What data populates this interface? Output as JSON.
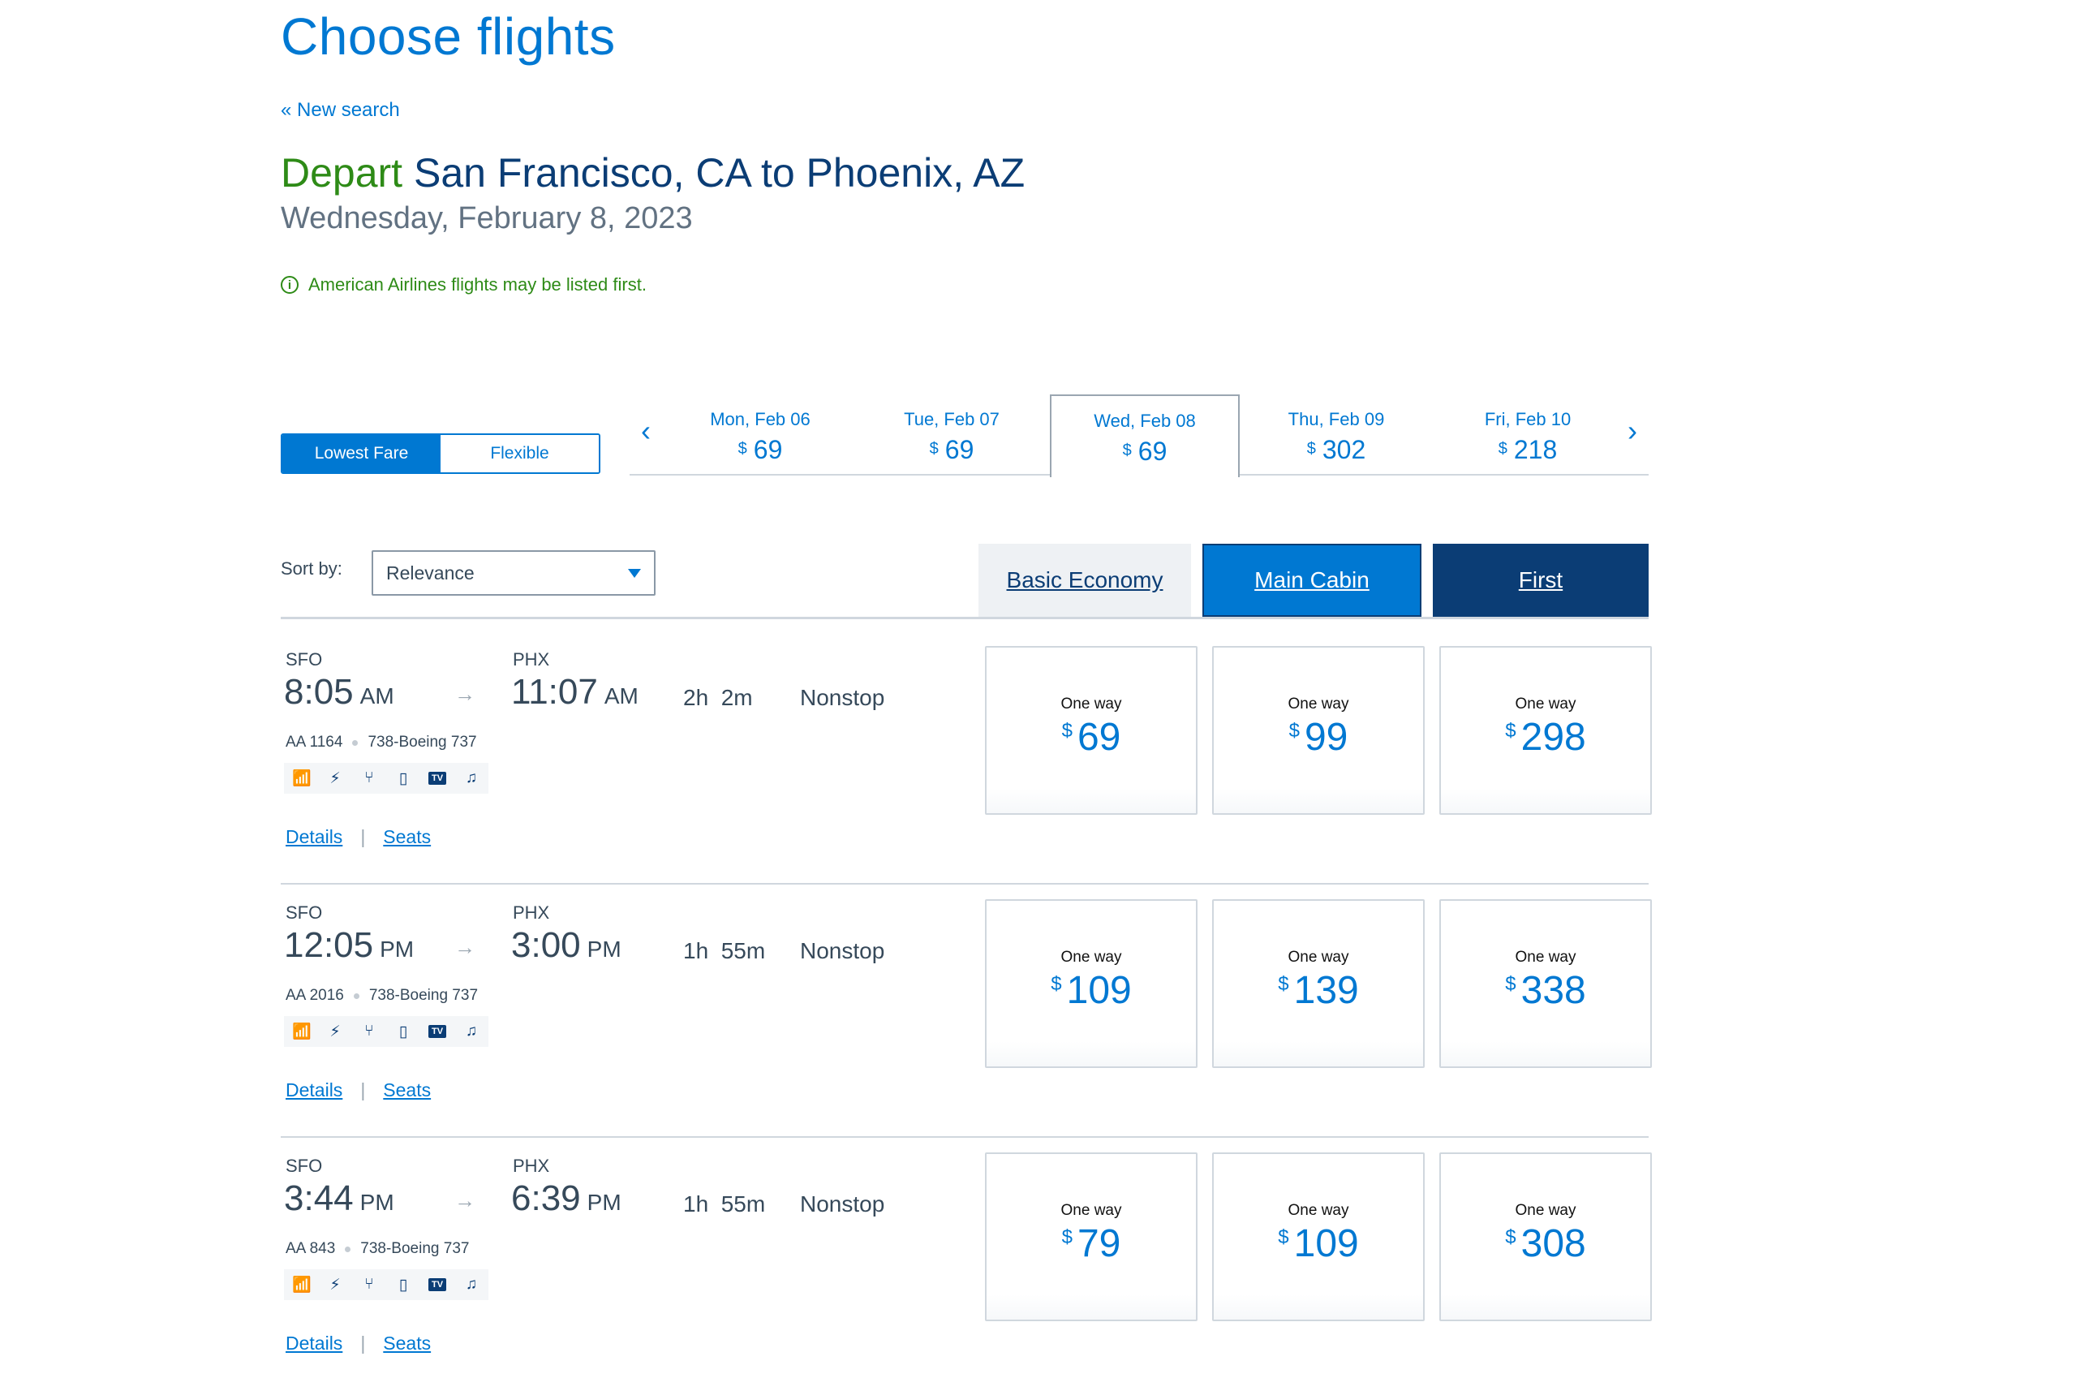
{
  "page": {
    "title": "Choose flights",
    "new_search": "« New search",
    "depart_label": "Depart",
    "route": "San Francisco, CA to Phoenix, AZ",
    "date": "Wednesday, February 8, 2023",
    "notice": "American Airlines flights may be listed first.",
    "notice_icon": "i"
  },
  "fare_toggle": {
    "lowest": "Lowest Fare",
    "flexible": "Flexible",
    "selected": "Lowest Fare"
  },
  "date_strip": {
    "prev": "‹",
    "next": "›",
    "dates": [
      {
        "day": "Mon, Feb 06",
        "currency": "$",
        "price": "69"
      },
      {
        "day": "Tue, Feb 07",
        "currency": "$",
        "price": "69"
      },
      {
        "day": "Wed, Feb 08",
        "currency": "$",
        "price": "69",
        "selected": true
      },
      {
        "day": "Thu, Feb 09",
        "currency": "$",
        "price": "302"
      },
      {
        "day": "Fri, Feb 10",
        "currency": "$",
        "price": "218"
      }
    ]
  },
  "sort": {
    "label": "Sort by:",
    "value": "Relevance"
  },
  "cabins": {
    "basic": "Basic Economy",
    "main": "Main Cabin",
    "first": "First"
  },
  "amenity_icons": [
    "wifi-icon",
    "power-outlet-icon",
    "usb-icon",
    "phone-icon",
    "tv-icon",
    "music-icon"
  ],
  "amenity_tv": "TV",
  "flights": [
    {
      "origin": "SFO",
      "dep_time": "8:05",
      "dep_ampm": "AM",
      "dest": "PHX",
      "arr_time": "11:07",
      "arr_ampm": "AM",
      "duration": "2h  2m",
      "stops": "Nonstop",
      "flight_no": "AA 1164",
      "aircraft": "738-Boeing 737",
      "details": "Details",
      "seats": "Seats",
      "prices": [
        {
          "label": "One way",
          "currency": "$",
          "amount": "69"
        },
        {
          "label": "One way",
          "currency": "$",
          "amount": "99"
        },
        {
          "label": "One way",
          "currency": "$",
          "amount": "298"
        }
      ]
    },
    {
      "origin": "SFO",
      "dep_time": "12:05",
      "dep_ampm": "PM",
      "dest": "PHX",
      "arr_time": "3:00",
      "arr_ampm": "PM",
      "duration": "1h  55m",
      "stops": "Nonstop",
      "flight_no": "AA 2016",
      "aircraft": "738-Boeing 737",
      "details": "Details",
      "seats": "Seats",
      "prices": [
        {
          "label": "One way",
          "currency": "$",
          "amount": "109"
        },
        {
          "label": "One way",
          "currency": "$",
          "amount": "139"
        },
        {
          "label": "One way",
          "currency": "$",
          "amount": "338"
        }
      ]
    },
    {
      "origin": "SFO",
      "dep_time": "3:44",
      "dep_ampm": "PM",
      "dest": "PHX",
      "arr_time": "6:39",
      "arr_ampm": "PM",
      "duration": "1h  55m",
      "stops": "Nonstop",
      "flight_no": "AA 843",
      "aircraft": "738-Boeing 737",
      "details": "Details",
      "seats": "Seats",
      "prices": [
        {
          "label": "One way",
          "currency": "$",
          "amount": "79"
        },
        {
          "label": "One way",
          "currency": "$",
          "amount": "109"
        },
        {
          "label": "One way",
          "currency": "$",
          "amount": "308"
        }
      ]
    }
  ],
  "colors": {
    "accent": "#0078d2",
    "navy": "#0b3d75",
    "green": "#2e8b17"
  }
}
